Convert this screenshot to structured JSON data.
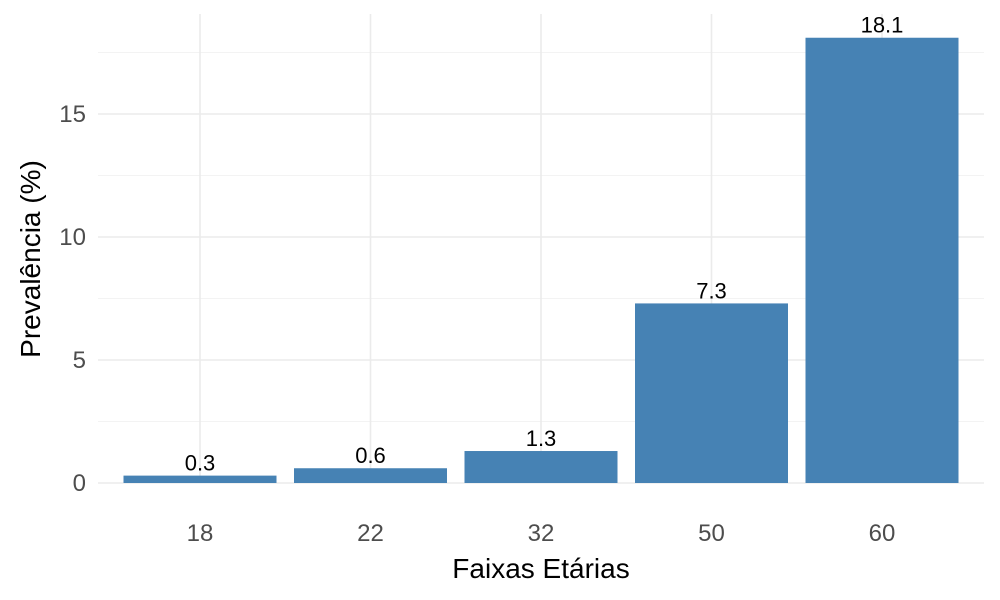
{
  "chart_data": {
    "type": "bar",
    "categories": [
      "18",
      "22",
      "32",
      "50",
      "60"
    ],
    "values": [
      0.3,
      0.6,
      1.3,
      7.3,
      18.1
    ],
    "data_labels": [
      "0.3",
      "0.6",
      "1.3",
      "7.3",
      "18.1"
    ],
    "title": "",
    "xlabel": "Faixas Etárias",
    "ylabel": "Prevalência (%)",
    "ylim": [
      0,
      19
    ],
    "yticks": [
      0,
      5,
      10,
      15
    ],
    "ytick_labels": [
      "0",
      "5",
      "10",
      "15"
    ],
    "grid": true,
    "bar_color": "#4682b4"
  }
}
